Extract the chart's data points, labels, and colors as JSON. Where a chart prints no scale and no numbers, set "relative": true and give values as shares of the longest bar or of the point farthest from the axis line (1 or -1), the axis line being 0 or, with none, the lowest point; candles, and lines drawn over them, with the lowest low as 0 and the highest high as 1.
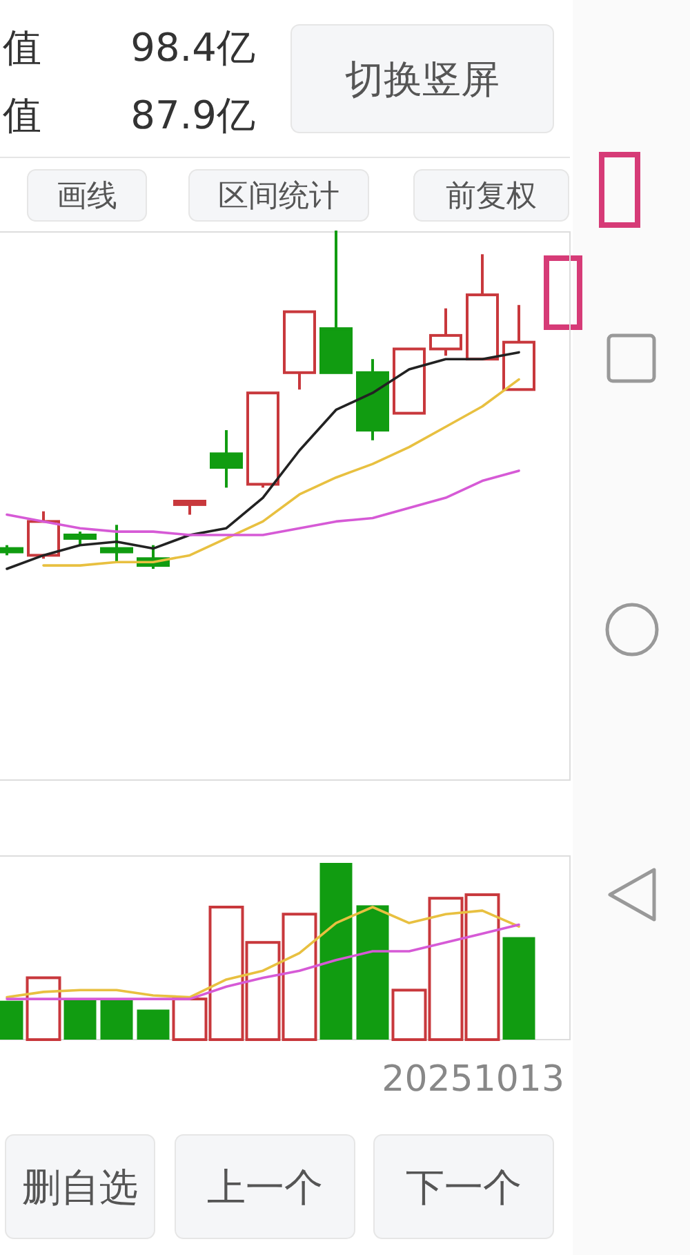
{
  "chart_data": [
    {
      "type": "other",
      "annotations": [
        "值",
        "98.4亿",
        "值",
        "87.9亿",
        "切换竖屏",
        "画线",
        "区间统计",
        "前复权"
      ]
    },
    {
      "type": "candlestick",
      "relative": true,
      "categories": [
        null,
        null,
        null,
        null,
        null,
        null,
        null,
        null,
        null,
        null,
        null,
        null,
        null,
        null,
        null
      ],
      "ohlc": [
        [
          0.06,
          0.07,
          0.04,
          0.05
        ],
        [
          0.04,
          0.17,
          0.03,
          0.14
        ],
        [
          0.1,
          0.11,
          0.07,
          0.09
        ],
        [
          0.06,
          0.13,
          0.02,
          0.05
        ],
        [
          0.03,
          0.07,
          0,
          0.01
        ],
        [
          0.19,
          0.2,
          0.16,
          0.2
        ],
        [
          0.34,
          0.41,
          0.24,
          0.3
        ],
        [
          0.25,
          0.52,
          0.24,
          0.52
        ],
        [
          0.58,
          0.76,
          0.53,
          0.76
        ],
        [
          0.71,
          1,
          0.58,
          0.58
        ],
        [
          0.58,
          0.62,
          0.38,
          0.41
        ],
        [
          0.46,
          0.65,
          0.46,
          0.65
        ],
        [
          0.65,
          0.77,
          0.63,
          0.69
        ],
        [
          0.62,
          0.93,
          0.62,
          0.81
        ],
        [
          0.53,
          0.78,
          0.53,
          0.67
        ]
      ],
      "colors": [
        "#119c11",
        "#c8383c",
        "#119c11",
        "#119c11",
        "#119c11",
        "#c8383c",
        "#119c11",
        "#c8383c",
        "#c8383c",
        "#119c11",
        "#119c11",
        "#c8383c",
        "#c8383c",
        "#c8383c",
        "#c8383c"
      ],
      "series": [
        {
          "type": "line",
          "color": "#222222",
          "values": [
            0,
            0.04,
            0.07,
            0.08,
            0.06,
            0.1,
            0.12,
            0.21,
            0.35,
            0.47,
            0.52,
            0.59,
            0.62,
            0.62,
            0.64
          ]
        },
        {
          "type": "line",
          "color": "#e8c040",
          "values": [
            null,
            0.01,
            0.01,
            0.02,
            0.02,
            0.04,
            0.09,
            0.14,
            0.22,
            0.27,
            0.31,
            0.36,
            0.42,
            0.48,
            0.56
          ]
        },
        {
          "type": "line",
          "color": "#d65ad6",
          "values": [
            0.16,
            0.14,
            0.12,
            0.11,
            0.11,
            0.1,
            0.1,
            0.1,
            0.12,
            0.14,
            0.15,
            0.18,
            0.21,
            0.26,
            0.29
          ]
        }
      ]
    },
    {
      "type": "bar",
      "relative": true,
      "categories": [
        null,
        null,
        null,
        null,
        null,
        null,
        null,
        null,
        null,
        null,
        null,
        null,
        null,
        null,
        null
      ],
      "values": [
        0.22,
        0.35,
        0.23,
        0.23,
        0.17,
        0.23,
        0.75,
        0.55,
        0.71,
        1,
        0.76,
        0.28,
        0.8,
        0.82,
        0.58
      ],
      "colors": [
        "#119c11",
        "#c8383c",
        "#119c11",
        "#119c11",
        "#119c11",
        "#c8383c",
        "#c8383c",
        "#c8383c",
        "#c8383c",
        "#119c11",
        "#119c11",
        "#c8383c",
        "#c8383c",
        "#c8383c",
        "#119c11"
      ],
      "series": [
        {
          "type": "line",
          "color": "#e8c040",
          "values": [
            0.24,
            0.27,
            0.28,
            0.28,
            0.25,
            0.24,
            0.34,
            0.39,
            0.49,
            0.66,
            0.75,
            0.66,
            0.71,
            0.73,
            0.64
          ]
        },
        {
          "type": "line",
          "color": "#d65ad6",
          "values": [
            0.23,
            0.23,
            0.23,
            0.23,
            0.23,
            0.23,
            0.3,
            0.35,
            0.39,
            0.45,
            0.5,
            0.5,
            0.55,
            0.6,
            0.65
          ]
        }
      ],
      "annotations": [
        "20251013"
      ]
    },
    {
      "type": "other",
      "annotations": [
        "删自选",
        "上一个",
        "下一个"
      ]
    }
  ]
}
